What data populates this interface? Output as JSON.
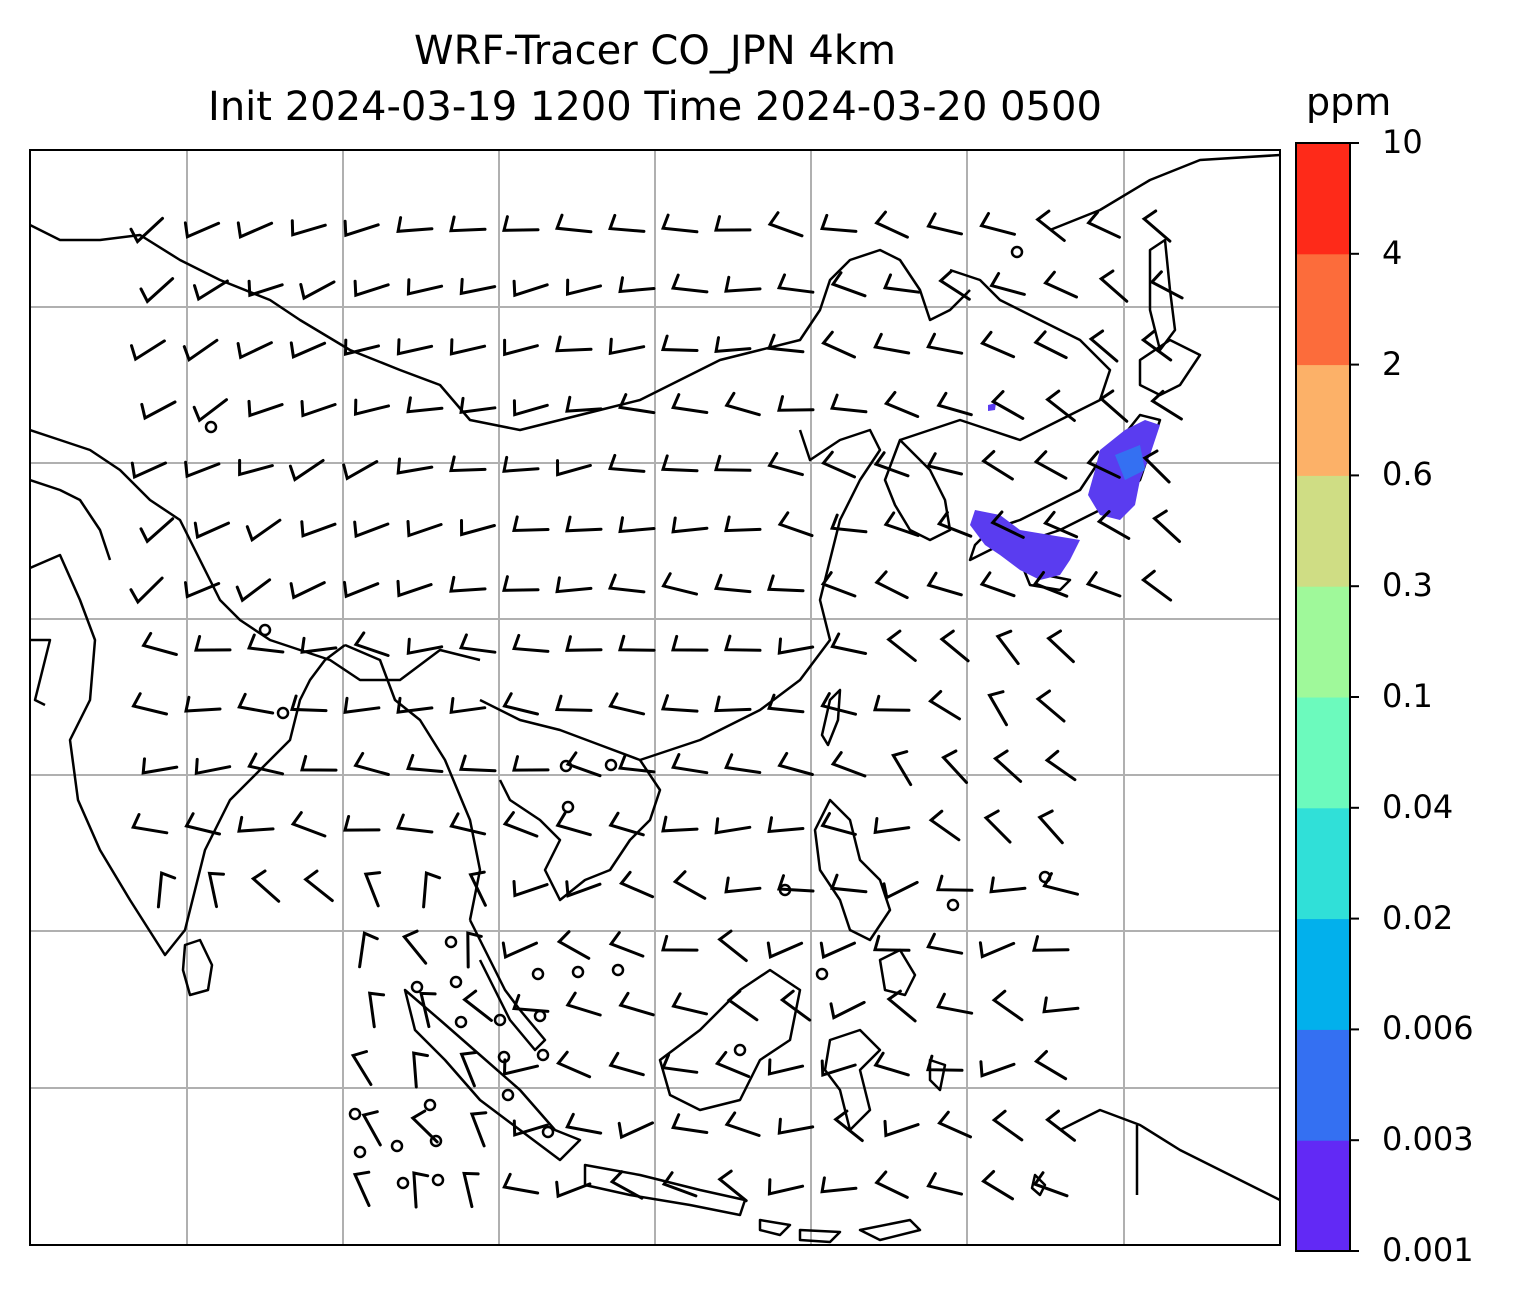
{
  "title": "WRF-Tracer CO_JPN 4km",
  "subtitle": "Init 2024-03-19 1200 Time 2024-03-20 0500",
  "colorbar": {
    "unit": "ppm",
    "levels": [
      "0.001",
      "0.003",
      "0.006",
      "0.02",
      "0.04",
      "0.1",
      "0.3",
      "0.6",
      "2",
      "4",
      "10"
    ],
    "colors": [
      "#6229f5",
      "#3470f2",
      "#02b0ec",
      "#30e0d8",
      "#6cfabd",
      "#9ff99a",
      "#cfdd84",
      "#fcb168",
      "#fc6c3b",
      "#fe2a19"
    ]
  },
  "map": {
    "plume_color": "#5a3cf0",
    "gridline_color": "#b0b0b0"
  }
}
